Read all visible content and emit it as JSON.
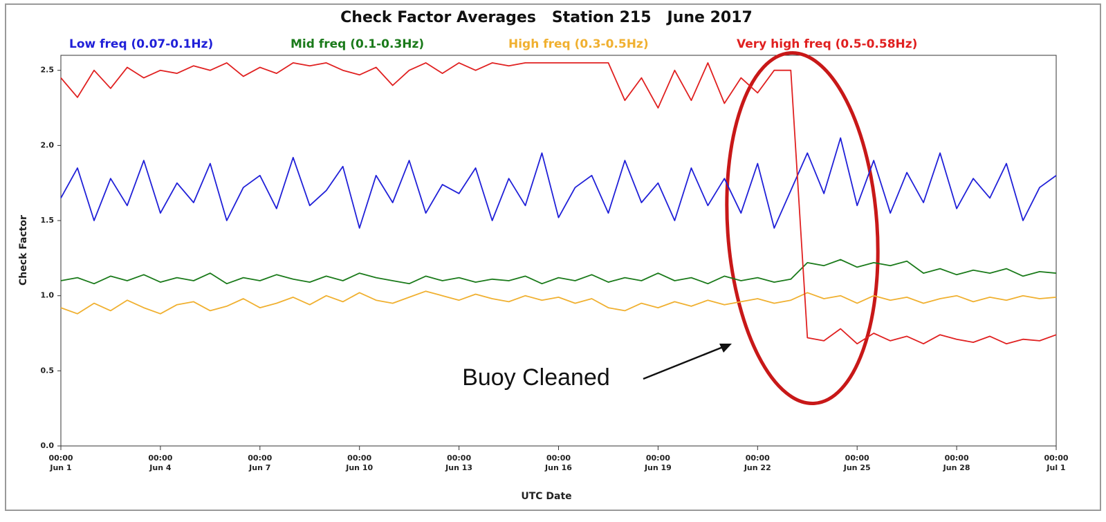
{
  "chart_data": {
    "type": "line",
    "title": "Check Factor Averages   Station 215   June 2017",
    "x_label": "UTC Date",
    "y_label": "Check Factor",
    "annotation": "Buoy Cleaned",
    "x": [
      0,
      0.5,
      1,
      1.5,
      2,
      2.5,
      3,
      3.5,
      4,
      4.5,
      5,
      5.5,
      6,
      6.5,
      7,
      7.5,
      8,
      8.5,
      9,
      9.5,
      10,
      10.5,
      11,
      11.5,
      12,
      12.5,
      13,
      13.5,
      14,
      14.5,
      15,
      15.5,
      16,
      16.5,
      17,
      17.5,
      18,
      18.5,
      19,
      19.5,
      20,
      20.5,
      21,
      21.5,
      22,
      22.5,
      23,
      23.5,
      24,
      24.5,
      25,
      25.5,
      26,
      26.5,
      27,
      27.5,
      28,
      28.5,
      29,
      29.5,
      30
    ],
    "series": [
      {
        "name": "Low freq (0.07-0.1Hz)",
        "color": "#2020d8",
        "values": [
          1.65,
          1.85,
          1.5,
          1.78,
          1.6,
          1.9,
          1.55,
          1.75,
          1.62,
          1.88,
          1.5,
          1.72,
          1.8,
          1.58,
          1.92,
          1.6,
          1.7,
          1.86,
          1.45,
          1.8,
          1.62,
          1.9,
          1.55,
          1.74,
          1.68,
          1.85,
          1.5,
          1.78,
          1.6,
          1.95,
          1.52,
          1.72,
          1.8,
          1.55,
          1.9,
          1.62,
          1.75,
          1.5,
          1.85,
          1.6,
          1.78,
          1.55,
          1.88,
          1.45,
          1.7,
          1.95,
          1.68,
          2.05,
          1.6,
          1.9,
          1.55,
          1.82,
          1.62,
          1.95,
          1.58,
          1.78,
          1.65,
          1.88,
          1.5,
          1.72,
          1.8
        ]
      },
      {
        "name": "Mid freq (0.1-0.3Hz)",
        "color": "#1a7a1a",
        "values": [
          1.1,
          1.12,
          1.08,
          1.13,
          1.1,
          1.14,
          1.09,
          1.12,
          1.1,
          1.15,
          1.08,
          1.12,
          1.1,
          1.14,
          1.11,
          1.09,
          1.13,
          1.1,
          1.15,
          1.12,
          1.1,
          1.08,
          1.13,
          1.1,
          1.12,
          1.09,
          1.11,
          1.1,
          1.13,
          1.08,
          1.12,
          1.1,
          1.14,
          1.09,
          1.12,
          1.1,
          1.15,
          1.1,
          1.12,
          1.08,
          1.13,
          1.1,
          1.12,
          1.09,
          1.11,
          1.22,
          1.2,
          1.24,
          1.19,
          1.22,
          1.2,
          1.23,
          1.15,
          1.18,
          1.14,
          1.17,
          1.15,
          1.18,
          1.13,
          1.16,
          1.15
        ]
      },
      {
        "name": "High freq (0.3-0.5Hz)",
        "color": "#f0b030",
        "values": [
          0.92,
          0.88,
          0.95,
          0.9,
          0.97,
          0.92,
          0.88,
          0.94,
          0.96,
          0.9,
          0.93,
          0.98,
          0.92,
          0.95,
          0.99,
          0.94,
          1.0,
          0.96,
          1.02,
          0.97,
          0.95,
          0.99,
          1.03,
          1.0,
          0.97,
          1.01,
          0.98,
          0.96,
          1.0,
          0.97,
          0.99,
          0.95,
          0.98,
          0.92,
          0.9,
          0.95,
          0.92,
          0.96,
          0.93,
          0.97,
          0.94,
          0.96,
          0.98,
          0.95,
          0.97,
          1.02,
          0.98,
          1.0,
          0.95,
          1.0,
          0.97,
          0.99,
          0.95,
          0.98,
          1.0,
          0.96,
          0.99,
          0.97,
          1.0,
          0.98,
          0.99
        ]
      },
      {
        "name": "Very high freq (0.5-0.58Hz)",
        "color": "#e02020",
        "values": [
          2.45,
          2.32,
          2.5,
          2.38,
          2.52,
          2.45,
          2.5,
          2.48,
          2.53,
          2.5,
          2.55,
          2.46,
          2.52,
          2.48,
          2.55,
          2.53,
          2.55,
          2.5,
          2.47,
          2.52,
          2.4,
          2.5,
          2.55,
          2.48,
          2.55,
          2.5,
          2.55,
          2.53,
          2.55,
          2.55,
          2.55,
          2.55,
          2.55,
          2.55,
          2.3,
          2.45,
          2.25,
          2.5,
          2.3,
          2.55,
          2.28,
          2.45,
          2.35,
          2.5,
          2.5,
          0.72,
          0.7,
          0.78,
          0.68,
          0.75,
          0.7,
          0.73,
          0.68,
          0.74,
          0.71,
          0.69,
          0.73,
          0.68,
          0.71,
          0.7,
          0.74
        ]
      }
    ],
    "xlim": [
      0,
      30
    ],
    "xticks": [
      {
        "value": 0,
        "label": "00:00\nJun 1"
      },
      {
        "value": 3,
        "label": "00:00\nJun 4"
      },
      {
        "value": 6,
        "label": "00:00\nJun 7"
      },
      {
        "value": 9,
        "label": "00:00\nJun 10"
      },
      {
        "value": 12,
        "label": "00:00\nJun 13"
      },
      {
        "value": 15,
        "label": "00:00\nJun 16"
      },
      {
        "value": 18,
        "label": "00:00\nJun 19"
      },
      {
        "value": 21,
        "label": "00:00\nJun 22"
      },
      {
        "value": 24,
        "label": "00:00\nJun 25"
      },
      {
        "value": 27,
        "label": "00:00\nJun 28"
      },
      {
        "value": 30,
        "label": "00:00\nJul 1"
      }
    ],
    "ylim": [
      0,
      2.6
    ],
    "yticks": [
      {
        "value": 0,
        "label": "0.0"
      },
      0.5,
      {
        "value": 1,
        "label": "1.0"
      },
      1.5,
      {
        "value": 2,
        "label": "2.0"
      },
      2.5
    ],
    "grid": false
  }
}
